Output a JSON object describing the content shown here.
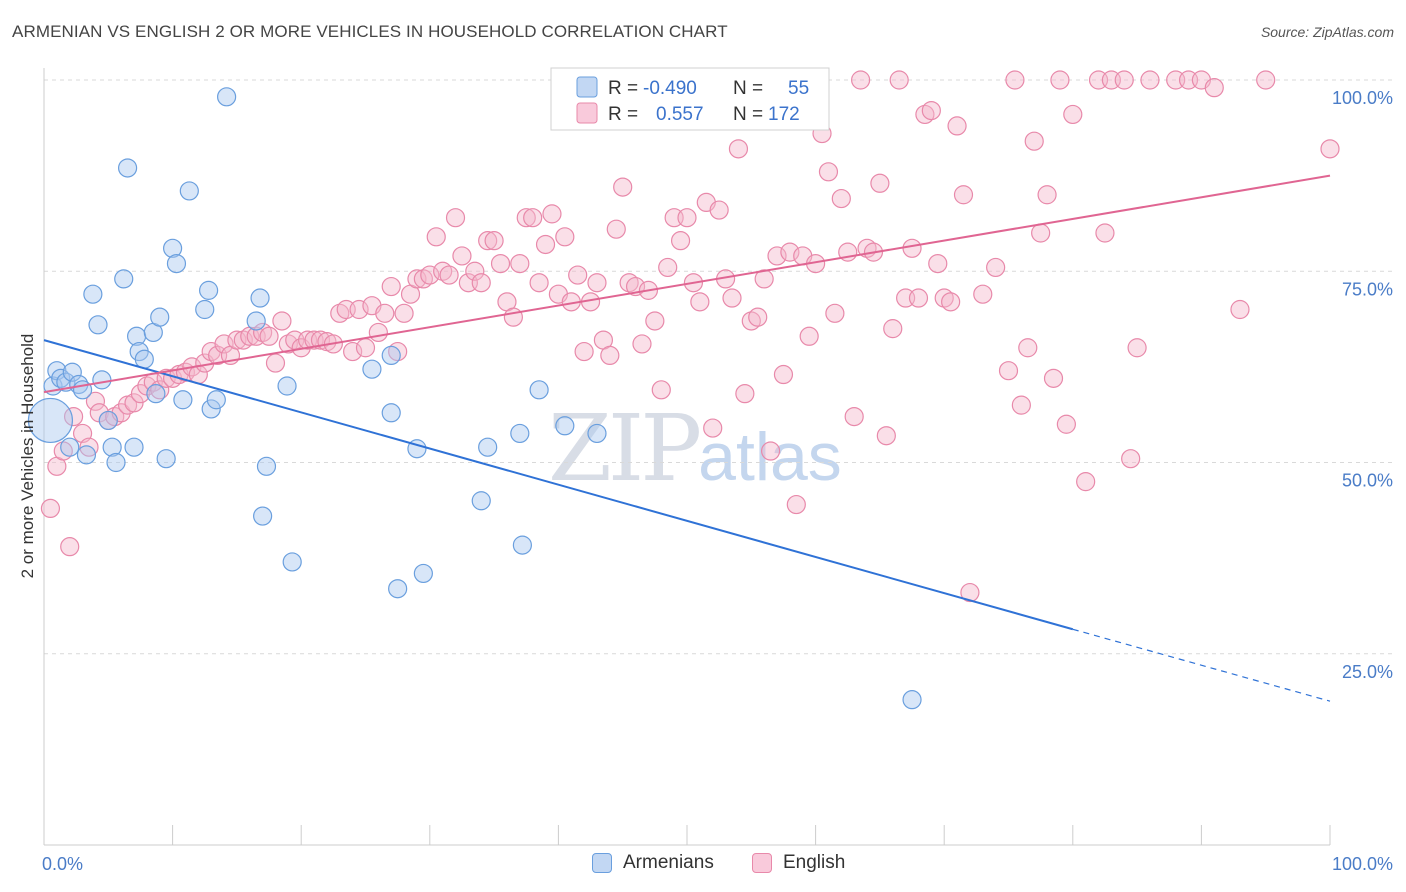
{
  "title": "ARMENIAN VS ENGLISH 2 OR MORE VEHICLES IN HOUSEHOLD CORRELATION CHART",
  "source": "Source: ZipAtlas.com",
  "watermark": {
    "zip": "ZIP",
    "atlas": "atlas"
  },
  "legend": {
    "rows": [
      {
        "r_label": "R =",
        "r_value": "-0.490",
        "n_label": "N =",
        "n_value": "55"
      },
      {
        "r_label": "R =",
        "r_value": "0.557",
        "n_label": "N =",
        "n_value": "172"
      }
    ]
  },
  "bottom_legend": {
    "armenians": "Armenians",
    "english": "English"
  },
  "colors": {
    "armenian_fill": "#a8c8f0",
    "armenian_stroke": "#6a9fde",
    "armenian_line": "#2f72d6",
    "english_fill": "#f5b8cc",
    "english_stroke": "#e889aa",
    "english_line": "#e06592",
    "tick_text": "#4a7cc7",
    "grid": "#d9d9d9"
  },
  "chart_data": {
    "type": "scatter",
    "title": "ARMENIAN VS ENGLISH 2 OR MORE VEHICLES IN HOUSEHOLD CORRELATION CHART",
    "xlabel": "",
    "ylabel": "2 or more Vehicles in Household",
    "xlim": [
      0,
      100
    ],
    "ylim": [
      0,
      102
    ],
    "x_tick_labels": [
      "0.0%",
      "100.0%"
    ],
    "y_tick_labels": [
      {
        "value": 25,
        "label": "25.0%"
      },
      {
        "value": 50,
        "label": "50.0%"
      },
      {
        "value": 75,
        "label": "75.0%"
      },
      {
        "value": 100,
        "label": "100.0%"
      }
    ],
    "grid": true,
    "legend_position": "top-center",
    "series": [
      {
        "name": "Armenians",
        "r": -0.49,
        "n": 55,
        "trend": {
          "x0": 0,
          "y0": 66.0,
          "x1": 80,
          "y1": 28.2,
          "dashed_to_x": 100,
          "dashed_to_y": 18.8
        },
        "points": [
          [
            0.5,
            55.5
          ],
          [
            0.7,
            60
          ],
          [
            1,
            62
          ],
          [
            1.3,
            61
          ],
          [
            1.7,
            60.5
          ],
          [
            2,
            52
          ],
          [
            2.2,
            61.8
          ],
          [
            2.7,
            60.2
          ],
          [
            3,
            59.5
          ],
          [
            3.3,
            51
          ],
          [
            3.8,
            72
          ],
          [
            4.2,
            68
          ],
          [
            4.5,
            60.8
          ],
          [
            5,
            55.5
          ],
          [
            5.3,
            52
          ],
          [
            5.6,
            50
          ],
          [
            6.2,
            74
          ],
          [
            6.5,
            88.5
          ],
          [
            7,
            52
          ],
          [
            7.2,
            66.5
          ],
          [
            7.4,
            64.5
          ],
          [
            7.8,
            63.5
          ],
          [
            8.5,
            67
          ],
          [
            8.7,
            59
          ],
          [
            9,
            69
          ],
          [
            9.5,
            50.5
          ],
          [
            10,
            78
          ],
          [
            10.3,
            76
          ],
          [
            10.8,
            58.2
          ],
          [
            11.3,
            85.5
          ],
          [
            12.5,
            70
          ],
          [
            12.8,
            72.5
          ],
          [
            13,
            57
          ],
          [
            13.4,
            58.2
          ],
          [
            14.2,
            97.8
          ],
          [
            16.5,
            68.5
          ],
          [
            16.8,
            71.5
          ],
          [
            17,
            43
          ],
          [
            17.3,
            49.5
          ],
          [
            18.9,
            60
          ],
          [
            19.3,
            37
          ],
          [
            25.5,
            62.2
          ],
          [
            27,
            56.5
          ],
          [
            27,
            64
          ],
          [
            27.5,
            33.5
          ],
          [
            29,
            51.8
          ],
          [
            29.5,
            35.5
          ],
          [
            34,
            45
          ],
          [
            34.5,
            52
          ],
          [
            37,
            53.8
          ],
          [
            37.2,
            39.2
          ],
          [
            38.5,
            59.5
          ],
          [
            40.5,
            54.8
          ],
          [
            43,
            53.8
          ],
          [
            67.5,
            19
          ]
        ]
      },
      {
        "name": "English",
        "r": 0.557,
        "n": 172,
        "trend": {
          "x0": 0,
          "y0": 59.2,
          "x1": 100,
          "y1": 87.5
        },
        "points": [
          [
            0.5,
            44
          ],
          [
            1,
            49.5
          ],
          [
            1.5,
            51.5
          ],
          [
            2,
            39
          ],
          [
            2.3,
            56
          ],
          [
            3,
            53.8
          ],
          [
            3.5,
            52
          ],
          [
            4,
            58
          ],
          [
            4.3,
            56.5
          ],
          [
            5,
            55.5
          ],
          [
            5.5,
            56
          ],
          [
            6,
            56.5
          ],
          [
            6.5,
            57.5
          ],
          [
            7,
            57.8
          ],
          [
            7.5,
            59
          ],
          [
            8,
            60
          ],
          [
            8.5,
            60.5
          ],
          [
            9,
            59.5
          ],
          [
            9.5,
            61
          ],
          [
            10,
            61
          ],
          [
            10.5,
            61.5
          ],
          [
            11,
            61.8
          ],
          [
            11.5,
            62.5
          ],
          [
            12,
            61.5
          ],
          [
            12.5,
            63
          ],
          [
            13,
            64.5
          ],
          [
            13.5,
            64
          ],
          [
            14,
            65.5
          ],
          [
            14.5,
            64
          ],
          [
            15,
            66
          ],
          [
            15.5,
            66
          ],
          [
            16,
            66.5
          ],
          [
            16.5,
            66.5
          ],
          [
            17,
            67
          ],
          [
            17.5,
            66.5
          ],
          [
            18,
            63
          ],
          [
            18.5,
            68.5
          ],
          [
            19,
            65.5
          ],
          [
            19.5,
            66
          ],
          [
            20,
            65
          ],
          [
            20.5,
            66
          ],
          [
            21,
            66
          ],
          [
            21.5,
            66
          ],
          [
            22,
            65.8
          ],
          [
            22.5,
            65.5
          ],
          [
            23,
            69.5
          ],
          [
            23.5,
            70
          ],
          [
            24,
            64.5
          ],
          [
            24.5,
            70
          ],
          [
            25,
            65
          ],
          [
            25.5,
            70.5
          ],
          [
            26,
            67
          ],
          [
            26.5,
            69.5
          ],
          [
            27,
            73
          ],
          [
            27.5,
            64.5
          ],
          [
            28,
            69.5
          ],
          [
            28.5,
            72
          ],
          [
            29,
            74
          ],
          [
            29.5,
            74
          ],
          [
            30,
            74.5
          ],
          [
            30.5,
            79.5
          ],
          [
            31,
            75
          ],
          [
            31.5,
            74.5
          ],
          [
            32,
            82
          ],
          [
            32.5,
            77
          ],
          [
            33,
            73.5
          ],
          [
            33.5,
            75
          ],
          [
            34,
            73.5
          ],
          [
            34.5,
            79
          ],
          [
            35,
            79
          ],
          [
            35.5,
            76
          ],
          [
            36,
            71
          ],
          [
            36.5,
            69
          ],
          [
            37,
            76
          ],
          [
            37.5,
            82
          ],
          [
            38,
            82
          ],
          [
            38.5,
            73.5
          ],
          [
            39,
            78.5
          ],
          [
            39.5,
            82.5
          ],
          [
            40,
            72
          ],
          [
            40.5,
            79.5
          ],
          [
            41,
            71
          ],
          [
            41.5,
            74.5
          ],
          [
            42,
            64.5
          ],
          [
            42.5,
            71
          ],
          [
            43,
            73.5
          ],
          [
            43.5,
            66
          ],
          [
            44,
            64
          ],
          [
            44.5,
            80.5
          ],
          [
            45,
            86
          ],
          [
            45.5,
            73.5
          ],
          [
            46,
            73
          ],
          [
            46.5,
            65.5
          ],
          [
            47,
            72.5
          ],
          [
            47.5,
            68.5
          ],
          [
            48,
            59.5
          ],
          [
            48.5,
            75.5
          ],
          [
            49,
            82
          ],
          [
            49.5,
            79
          ],
          [
            50,
            82
          ],
          [
            50.5,
            73.5
          ],
          [
            51,
            71
          ],
          [
            51.5,
            84
          ],
          [
            52,
            54.5
          ],
          [
            52.5,
            83
          ],
          [
            53,
            74
          ],
          [
            53.5,
            71.5
          ],
          [
            54,
            91
          ],
          [
            54.5,
            59
          ],
          [
            55,
            68.5
          ],
          [
            55.5,
            69
          ],
          [
            56,
            74
          ],
          [
            56.5,
            51.5
          ],
          [
            57,
            77
          ],
          [
            57.5,
            61.5
          ],
          [
            58,
            77.5
          ],
          [
            58.5,
            44.5
          ],
          [
            59,
            77
          ],
          [
            59.5,
            66.5
          ],
          [
            60,
            76
          ],
          [
            60.5,
            93
          ],
          [
            61,
            88
          ],
          [
            61.5,
            69.5
          ],
          [
            62,
            84.5
          ],
          [
            62.5,
            77.5
          ],
          [
            63,
            56
          ],
          [
            63.5,
            100
          ],
          [
            64,
            78
          ],
          [
            64.5,
            77.5
          ],
          [
            65,
            86.5
          ],
          [
            65.5,
            53.5
          ],
          [
            66,
            67.5
          ],
          [
            66.5,
            100
          ],
          [
            67,
            71.5
          ],
          [
            67.5,
            78
          ],
          [
            68,
            71.5
          ],
          [
            68.5,
            95.5
          ],
          [
            69,
            96
          ],
          [
            69.5,
            76
          ],
          [
            70,
            71.5
          ],
          [
            70.5,
            71
          ],
          [
            71,
            94
          ],
          [
            71.5,
            85
          ],
          [
            72,
            33
          ],
          [
            73,
            72
          ],
          [
            74,
            75.5
          ],
          [
            75,
            62
          ],
          [
            75.5,
            100
          ],
          [
            76,
            57.5
          ],
          [
            76.5,
            65
          ],
          [
            77,
            92
          ],
          [
            77.5,
            80
          ],
          [
            78,
            85
          ],
          [
            78.5,
            61
          ],
          [
            79,
            100
          ],
          [
            79.5,
            55
          ],
          [
            80,
            95.5
          ],
          [
            81,
            47.5
          ],
          [
            82,
            100
          ],
          [
            82.5,
            80
          ],
          [
            83,
            100
          ],
          [
            84,
            100
          ],
          [
            84.5,
            50.5
          ],
          [
            85,
            65
          ],
          [
            86,
            100
          ],
          [
            88,
            100
          ],
          [
            89,
            100
          ],
          [
            90,
            100
          ],
          [
            91,
            99
          ],
          [
            93,
            70
          ],
          [
            95,
            100
          ],
          [
            100,
            91
          ]
        ]
      }
    ]
  }
}
